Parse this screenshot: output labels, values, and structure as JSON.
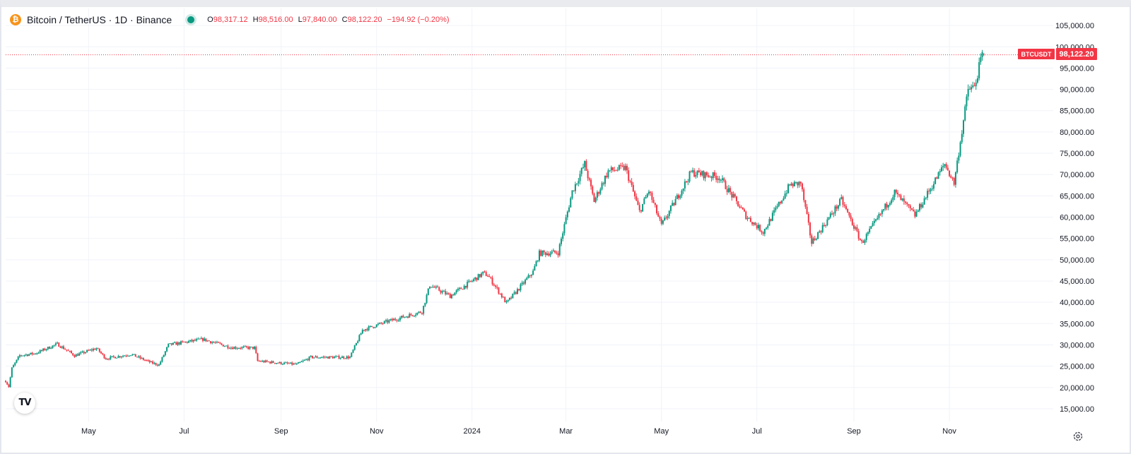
{
  "header": {
    "symbol_title": "Bitcoin / TetherUS · 1D · Binance",
    "coin_icon": "bitcoin-icon",
    "ohlc": {
      "open_label": "O",
      "open": "98,317.12",
      "high_label": "H",
      "high": "98,516.00",
      "low_label": "L",
      "low": "97,840.00",
      "close_label": "C",
      "close": "98,122.20",
      "change": "−194.92 (−0.20%)"
    }
  },
  "price_label": {
    "symbol": "BTCUSDT",
    "price": "98,122.20",
    "value": 98122.2
  },
  "logo": "TV",
  "icons": {
    "settings": "settings-icon"
  },
  "colors": {
    "up": "#089981",
    "down": "#f23645",
    "grid": "#f0f3fa",
    "axis_text": "#131722"
  },
  "chart_data": {
    "type": "candlestick",
    "title": "Bitcoin / TetherUS · 1D · Binance",
    "y_axis": {
      "position": "right",
      "range": [
        12000,
        109000
      ],
      "ticks": [
        15000,
        20000,
        25000,
        30000,
        35000,
        40000,
        45000,
        50000,
        55000,
        60000,
        65000,
        70000,
        75000,
        80000,
        85000,
        90000,
        95000,
        100000,
        105000
      ],
      "tick_labels": [
        "15,000.00",
        "20,000.00",
        "25,000.00",
        "30,000.00",
        "35,000.00",
        "40,000.00",
        "45,000.00",
        "50,000.00",
        "55,000.00",
        "60,000.00",
        "65,000.00",
        "70,000.00",
        "75,000.00",
        "80,000.00",
        "85,000.00",
        "90,000.00",
        "95,000.00",
        "100,000.00",
        "105,000.00"
      ]
    },
    "x_axis": {
      "range": [
        "2023-03-09",
        "2024-12-08"
      ],
      "ticks": [
        "2023-05-01",
        "2023-07-01",
        "2023-09-01",
        "2023-11-01",
        "2024-01-01",
        "2024-03-01",
        "2024-05-01",
        "2024-07-01",
        "2024-09-01",
        "2024-11-01"
      ],
      "tick_labels": [
        "May",
        "Jul",
        "Sep",
        "Nov",
        "2024",
        "Mar",
        "May",
        "Jul",
        "Sep",
        "Nov"
      ]
    },
    "grid": true,
    "last_price_line": 98122.2,
    "series": [
      {
        "path": [
          [
            "2023-03-09",
            21500
          ],
          [
            "2023-03-11",
            20200
          ],
          [
            "2023-03-13",
            24500
          ],
          [
            "2023-03-18",
            27500
          ],
          [
            "2023-03-28",
            28000
          ],
          [
            "2023-04-11",
            30200
          ],
          [
            "2023-04-22",
            27500
          ],
          [
            "2023-05-06",
            29200
          ],
          [
            "2023-05-12",
            26800
          ],
          [
            "2023-05-28",
            27800
          ],
          [
            "2023-06-10",
            25800
          ],
          [
            "2023-06-15",
            25300
          ],
          [
            "2023-06-21",
            30000
          ],
          [
            "2023-07-13",
            31300
          ],
          [
            "2023-07-31",
            29400
          ],
          [
            "2023-08-15",
            29300
          ],
          [
            "2023-08-17",
            26200
          ],
          [
            "2023-09-11",
            25400
          ],
          [
            "2023-09-20",
            27100
          ],
          [
            "2023-10-15",
            27100
          ],
          [
            "2023-10-23",
            33500
          ],
          [
            "2023-11-08",
            35500
          ],
          [
            "2023-11-30",
            37800
          ],
          [
            "2023-12-05",
            44000
          ],
          [
            "2023-12-18",
            41500
          ],
          [
            "2024-01-08",
            46800
          ],
          [
            "2024-01-11",
            46400
          ],
          [
            "2024-01-23",
            39800
          ],
          [
            "2024-02-09",
            47200
          ],
          [
            "2024-02-13",
            51500
          ],
          [
            "2024-02-25",
            51700
          ],
          [
            "2024-03-05",
            66000
          ],
          [
            "2024-03-13",
            72500
          ],
          [
            "2024-03-19",
            63800
          ],
          [
            "2024-03-28",
            70800
          ],
          [
            "2024-04-08",
            71600
          ],
          [
            "2024-04-17",
            61300
          ],
          [
            "2024-04-23",
            66200
          ],
          [
            "2024-05-01",
            58000
          ],
          [
            "2024-05-20",
            70500
          ],
          [
            "2024-06-07",
            69400
          ],
          [
            "2024-06-24",
            60300
          ],
          [
            "2024-07-05",
            56500
          ],
          [
            "2024-07-22",
            67500
          ],
          [
            "2024-07-29",
            68000
          ],
          [
            "2024-08-05",
            54000
          ],
          [
            "2024-08-24",
            64000
          ],
          [
            "2024-09-06",
            53900
          ],
          [
            "2024-09-27",
            65800
          ],
          [
            "2024-10-10",
            60400
          ],
          [
            "2024-10-29",
            72500
          ],
          [
            "2024-11-04",
            68000
          ],
          [
            "2024-11-13",
            90000
          ],
          [
            "2024-11-17",
            90500
          ],
          [
            "2024-11-22",
            98300
          ],
          [
            "2024-11-23",
            98122
          ]
        ]
      }
    ]
  }
}
